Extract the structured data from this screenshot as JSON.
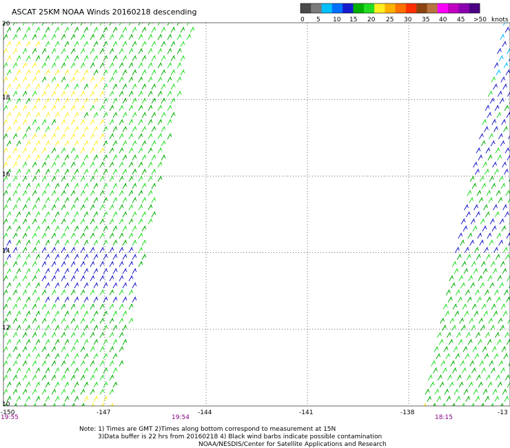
{
  "title": "ASCAT 25KM NOAA Winds 20160218 descending",
  "legend": {
    "colors": [
      "#4a4a4a",
      "#7a7a7a",
      "#00bfff",
      "#0070ff",
      "#1a1acd",
      "#00b000",
      "#22dd22",
      "#ffee22",
      "#ffb000",
      "#ff7000",
      "#ff3000",
      "#8b4513",
      "#b87340",
      "#ff00ff",
      "#c000c0",
      "#8a00b0",
      "#4b0082"
    ],
    "labels": [
      "0",
      "5",
      "10",
      "15",
      "20",
      "25",
      "30",
      "35",
      "40",
      "45",
      ">50"
    ],
    "unit": "knots"
  },
  "map": {
    "lon_range": [
      -150,
      -135
    ],
    "lat_range": [
      10,
      20
    ],
    "lon_ticks": [
      -147,
      -144,
      -141,
      -138
    ],
    "lat_ticks": [
      12,
      14,
      16,
      18
    ],
    "lon_labels": [
      "-150",
      "-147",
      "-144",
      "-141",
      "-138",
      "-13"
    ],
    "lat_labels": [
      "20",
      "18",
      "16",
      "14",
      "12",
      "10"
    ],
    "swaths": [
      {
        "time": "19:55",
        "corners": [
          [
            -150,
            20
          ],
          [
            -144.4,
            20
          ],
          [
            -146.8,
            10
          ],
          [
            -150,
            10
          ]
        ]
      },
      {
        "time": "19:54"
      },
      {
        "time": "18:15",
        "corners": [
          [
            -135.2,
            20
          ],
          [
            -135,
            20
          ],
          [
            -135,
            10
          ],
          [
            -137.6,
            10
          ]
        ]
      }
    ],
    "wind_colors": {
      "light": "#22dd22",
      "medium": "#00b000",
      "strong": "#1a1acd",
      "weak": "#ffee22",
      "cyan": "#00bfff"
    },
    "times": [
      "19:55",
      "19:54",
      "18:15"
    ],
    "time_color": "#800080"
  },
  "notes": [
    "Note: 1) Times are GMT 2)Times along bottom correspond to measurement at 15N",
    "3)Data buffer is 22 hrs from 20160218 4) Black wind barbs indicate possible contamination",
    "NOAA/NESDIS/Center for Satellite Applications and Research"
  ]
}
